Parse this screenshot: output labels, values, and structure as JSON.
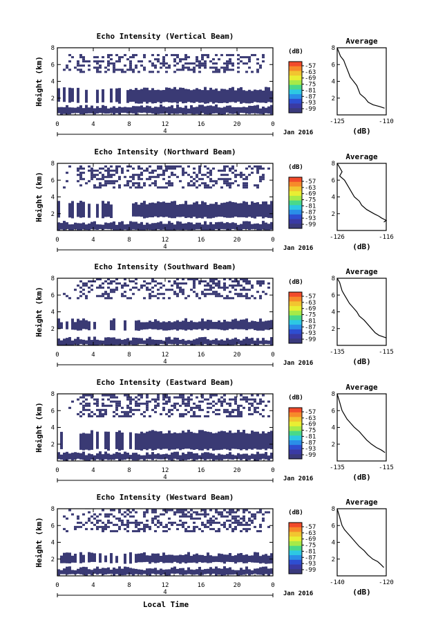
{
  "figure": {
    "x_axis_title": "Local Time",
    "colorbar_unit": "(dB)",
    "colorbar_ticks": [
      "-57",
      "-63",
      "-69",
      "-75",
      "-81",
      "-87",
      "-93",
      "-99"
    ],
    "colorbar_colors": [
      "#f24b2b",
      "#f78a2a",
      "#f2c530",
      "#e9ee33",
      "#a7ea48",
      "#49d98a",
      "#2dc8e3",
      "#2a8ee8",
      "#2e4ed1",
      "#3a3aa4",
      "#3a3a7c"
    ],
    "fill_color": "#3a3a74",
    "colors": {
      "axis": "#000000",
      "background": "#ffffff"
    }
  },
  "chart_data": [
    {
      "type": "heatmap",
      "title": "Echo Intensity (Vertical Beam)",
      "ylabel": "Height (km)",
      "xlim": [
        0,
        24
      ],
      "ylim": [
        0,
        8
      ],
      "x_ticks": [
        "0",
        "4",
        "8",
        "12",
        "16",
        "20",
        "0"
      ],
      "date_tick_label": "4",
      "date_label": "Jan 2016",
      "y_ticks": [
        "8",
        "6",
        "4",
        "2"
      ],
      "high_echo_bands_km": [
        [
          0.2,
          1.0
        ],
        [
          1.5,
          3.1
        ]
      ],
      "upper_patchy_echo_km": [
        5.0,
        7.2
      ],
      "average_profile": {
        "title": "Average",
        "xlabel": "(dB)",
        "xlim": [
          -125,
          -110
        ],
        "x_ticks": [
          "-125",
          "-110"
        ],
        "y_ticks": [
          "8",
          "6",
          "4",
          "2"
        ],
        "points": [
          [
            -125,
            8
          ],
          [
            -124.5,
            7.5
          ],
          [
            -124,
            7
          ],
          [
            -123,
            6.5
          ],
          [
            -122.5,
            6
          ],
          [
            -122,
            5.5
          ],
          [
            -121.5,
            5
          ],
          [
            -121,
            4.5
          ],
          [
            -120,
            4
          ],
          [
            -119,
            3.5
          ],
          [
            -118.5,
            3
          ],
          [
            -118,
            2.5
          ],
          [
            -116.5,
            2
          ],
          [
            -115.5,
            1.5
          ],
          [
            -114,
            1.2
          ],
          [
            -112,
            1.0
          ],
          [
            -110.5,
            0.8
          ]
        ]
      }
    },
    {
      "type": "heatmap",
      "title": "Echo Intensity (Northward Beam)",
      "ylabel": "Height (km)",
      "xlim": [
        0,
        24
      ],
      "ylim": [
        0,
        8
      ],
      "x_ticks": [
        "0",
        "4",
        "8",
        "12",
        "16",
        "20",
        "0"
      ],
      "date_tick_label": "4",
      "date_label": "Jan 2016",
      "y_ticks": [
        "8",
        "6",
        "4",
        "2"
      ],
      "high_echo_bands_km": [
        [
          0.1,
          0.9
        ],
        [
          1.6,
          3.3
        ]
      ],
      "upper_patchy_echo_km": [
        5.0,
        7.6
      ],
      "average_profile": {
        "title": "Average",
        "xlabel": "(dB)",
        "xlim": [
          -126,
          -116
        ],
        "x_ticks": [
          "-126",
          "-116"
        ],
        "y_ticks": [
          "8",
          "6",
          "4",
          "2"
        ],
        "points": [
          [
            -126,
            8
          ],
          [
            -125.5,
            7.5
          ],
          [
            -125,
            7
          ],
          [
            -125.5,
            6.5
          ],
          [
            -124.5,
            6
          ],
          [
            -124,
            5.5
          ],
          [
            -123.5,
            5
          ],
          [
            -123,
            4.5
          ],
          [
            -122.5,
            4
          ],
          [
            -121.5,
            3.5
          ],
          [
            -121,
            3
          ],
          [
            -120,
            2.5
          ],
          [
            -118.5,
            2
          ],
          [
            -117.5,
            1.7
          ],
          [
            -117,
            1.5
          ],
          [
            -116,
            1.2
          ],
          [
            -116.5,
            1.0
          ]
        ]
      }
    },
    {
      "type": "heatmap",
      "title": "Echo Intensity (Southward Beam)",
      "ylabel": "Height (km)",
      "xlim": [
        0,
        24
      ],
      "ylim": [
        0,
        8
      ],
      "x_ticks": [
        "0",
        "4",
        "8",
        "12",
        "16",
        "20",
        "0"
      ],
      "date_tick_label": "4",
      "date_label": "Jan 2016",
      "y_ticks": [
        "8",
        "6",
        "4",
        "2"
      ],
      "high_echo_bands_km": [
        [
          0.1,
          0.8
        ],
        [
          1.9,
          3.0
        ]
      ],
      "upper_patchy_echo_km": [
        5.5,
        8.0
      ],
      "average_profile": {
        "title": "Average",
        "xlabel": "(dB)",
        "xlim": [
          -135,
          -115
        ],
        "x_ticks": [
          "-135",
          "-115"
        ],
        "y_ticks": [
          "8",
          "6",
          "4",
          "2"
        ],
        "points": [
          [
            -135,
            8
          ],
          [
            -134,
            7.5
          ],
          [
            -133.5,
            7
          ],
          [
            -133,
            6.5
          ],
          [
            -132,
            6
          ],
          [
            -131,
            5.5
          ],
          [
            -130,
            5
          ],
          [
            -128.5,
            4.5
          ],
          [
            -127,
            4
          ],
          [
            -126,
            3.5
          ],
          [
            -124,
            3
          ],
          [
            -122.5,
            2.5
          ],
          [
            -121,
            2
          ],
          [
            -119.5,
            1.5
          ],
          [
            -118,
            1.2
          ],
          [
            -116,
            1.0
          ],
          [
            -115,
            0.9
          ]
        ]
      }
    },
    {
      "type": "heatmap",
      "title": "Echo Intensity (Eastward Beam)",
      "ylabel": "Height (km)",
      "xlim": [
        0,
        24
      ],
      "ylim": [
        0,
        8
      ],
      "x_ticks": [
        "0",
        "4",
        "8",
        "12",
        "16",
        "20",
        "0"
      ],
      "date_tick_label": "4",
      "date_label": "Jan 2016",
      "y_ticks": [
        "8",
        "6",
        "4",
        "2"
      ],
      "high_echo_bands_km": [
        [
          0.2,
          0.9
        ],
        [
          1.4,
          3.5
        ]
      ],
      "upper_patchy_echo_km": [
        5.2,
        7.8
      ],
      "average_profile": {
        "title": "Average",
        "xlabel": "(dB)",
        "xlim": [
          -135,
          -115
        ],
        "x_ticks": [
          "-135",
          "-115"
        ],
        "y_ticks": [
          "8",
          "6",
          "4",
          "2"
        ],
        "points": [
          [
            -135,
            8
          ],
          [
            -134.5,
            7.5
          ],
          [
            -134,
            7
          ],
          [
            -133.5,
            6.5
          ],
          [
            -133,
            6
          ],
          [
            -132,
            5.5
          ],
          [
            -131,
            5
          ],
          [
            -129.5,
            4.5
          ],
          [
            -128,
            4
          ],
          [
            -126,
            3.5
          ],
          [
            -124.5,
            3
          ],
          [
            -123,
            2.5
          ],
          [
            -121,
            2
          ],
          [
            -119,
            1.6
          ],
          [
            -117,
            1.3
          ],
          [
            -115.5,
            1.0
          ]
        ]
      }
    },
    {
      "type": "heatmap",
      "title": "Echo Intensity (Westward Beam)",
      "ylabel": "Height (km)",
      "xlim": [
        0,
        24
      ],
      "ylim": [
        0,
        8
      ],
      "x_ticks": [
        "0",
        "4",
        "8",
        "12",
        "16",
        "20",
        "0"
      ],
      "date_tick_label": "4",
      "date_label": "Jan 2016",
      "y_ticks": [
        "8",
        "6",
        "4",
        "2"
      ],
      "high_echo_bands_km": [
        [
          0.2,
          0.9
        ],
        [
          1.6,
          2.6
        ]
      ],
      "upper_patchy_echo_km": [
        5.2,
        8.0
      ],
      "average_profile": {
        "title": "Average",
        "xlabel": "(dB)",
        "xlim": [
          -140,
          -120
        ],
        "x_ticks": [
          "-140",
          "-120"
        ],
        "y_ticks": [
          "8",
          "6",
          "4",
          "2"
        ],
        "points": [
          [
            -140,
            8
          ],
          [
            -139.5,
            7.5
          ],
          [
            -139,
            7
          ],
          [
            -138.5,
            6.5
          ],
          [
            -138,
            6
          ],
          [
            -137,
            5.5
          ],
          [
            -135.5,
            5
          ],
          [
            -134,
            4.5
          ],
          [
            -132.5,
            4
          ],
          [
            -131,
            3.5
          ],
          [
            -129,
            3
          ],
          [
            -127.5,
            2.5
          ],
          [
            -125.5,
            2
          ],
          [
            -123.5,
            1.7
          ],
          [
            -122,
            1.3
          ],
          [
            -121,
            1.0
          ]
        ]
      }
    }
  ]
}
